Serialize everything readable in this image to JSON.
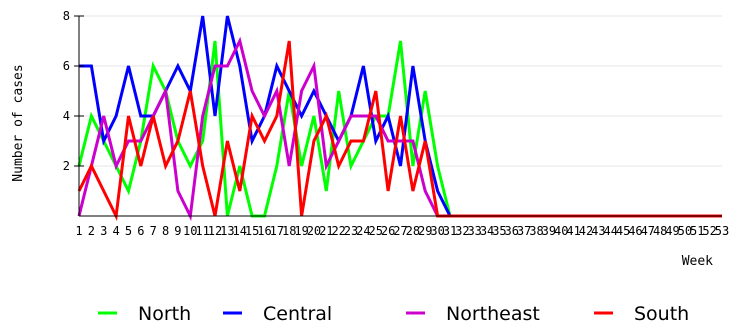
{
  "chart_data": {
    "type": "line",
    "title": "",
    "xlabel": "Week",
    "ylabel": "Number of cases",
    "xlim": [
      1,
      53
    ],
    "ylim": [
      0,
      8
    ],
    "y_ticks": [
      2,
      4,
      6,
      8
    ],
    "grid": "horizontal",
    "legend_position": "bottom",
    "x": [
      1,
      2,
      3,
      4,
      5,
      6,
      7,
      8,
      9,
      10,
      11,
      12,
      13,
      14,
      15,
      16,
      17,
      18,
      19,
      20,
      21,
      22,
      23,
      24,
      25,
      26,
      27,
      28,
      29,
      30,
      31,
      32,
      33,
      34,
      35,
      36,
      37,
      38,
      39,
      40,
      41,
      42,
      43,
      44,
      45,
      46,
      47,
      48,
      49,
      50,
      51,
      52,
      53
    ],
    "series": [
      {
        "name": "North",
        "color": "#00ff00",
        "values": [
          2,
          4,
          3,
          2,
          1,
          3,
          6,
          5,
          3,
          2,
          3,
          7,
          0,
          2,
          0,
          0,
          2,
          5,
          2,
          4,
          1,
          5,
          2,
          3,
          4,
          4,
          7,
          2,
          5,
          2,
          0,
          0,
          0,
          0,
          0,
          0,
          0,
          0,
          0,
          0,
          0,
          0,
          0,
          0,
          0,
          0,
          0,
          0,
          0,
          0,
          0,
          0,
          0
        ]
      },
      {
        "name": "Central",
        "color": "#0000ff",
        "values": [
          6,
          6,
          3,
          4,
          6,
          4,
          4,
          5,
          6,
          5,
          8,
          4,
          8,
          6,
          3,
          4,
          6,
          5,
          4,
          5,
          4,
          3,
          4,
          6,
          3,
          4,
          2,
          6,
          3,
          1,
          0,
          0,
          0,
          0,
          0,
          0,
          0,
          0,
          0,
          0,
          0,
          0,
          0,
          0,
          0,
          0,
          0,
          0,
          0,
          0,
          0,
          0,
          0
        ]
      },
      {
        "name": "Northeast",
        "color": "#cc00cc",
        "values": [
          0,
          2,
          4,
          2,
          3,
          3,
          4,
          5,
          1,
          0,
          4,
          6,
          6,
          7,
          5,
          4,
          5,
          2,
          5,
          6,
          2,
          3,
          4,
          4,
          4,
          3,
          3,
          3,
          1,
          0,
          0,
          0,
          0,
          0,
          0,
          0,
          0,
          0,
          0,
          0,
          0,
          0,
          0,
          0,
          0,
          0,
          0,
          0,
          0,
          0,
          0,
          0,
          0
        ]
      },
      {
        "name": "South",
        "color": "#ff0000",
        "values": [
          1,
          2,
          1,
          0,
          4,
          2,
          4,
          2,
          3,
          5,
          2,
          0,
          3,
          1,
          4,
          3,
          4,
          7,
          0,
          3,
          4,
          2,
          3,
          3,
          5,
          1,
          4,
          1,
          3,
          0,
          0,
          0,
          0,
          0,
          0,
          0,
          0,
          0,
          0,
          0,
          0,
          0,
          0,
          0,
          0,
          0,
          0,
          0,
          0,
          0,
          0,
          0,
          0
        ]
      }
    ]
  }
}
